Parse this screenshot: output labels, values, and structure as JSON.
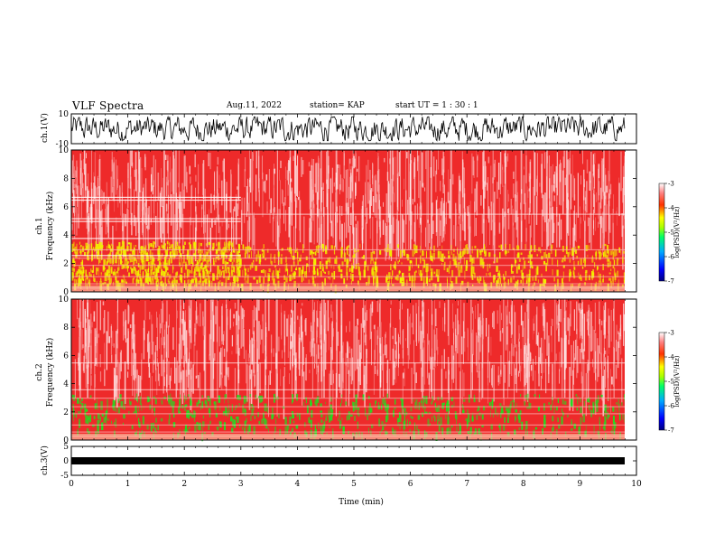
{
  "header": {
    "title": "VLF Spectra",
    "date": "Aug.11, 2022",
    "station": "station= KAP",
    "start": "start  UT =   1 : 30 : 1"
  },
  "colors": {
    "spec_background": "#ee2a2a",
    "spec_white_noise": "#ffe0e0",
    "spec_yellow": "#f2f000",
    "spec_green": "#22dd22",
    "waveform": "#000000"
  },
  "chart_data": [
    {
      "type": "line",
      "panel": "ch1-waveform",
      "ylabel": "ch.1(V)",
      "ylim": [
        -10,
        10
      ],
      "yticks": [
        "10",
        "-10"
      ],
      "xlim": [
        0,
        10
      ],
      "description_series": "noisy waveform spanning roughly -8 to 8 V"
    },
    {
      "type": "heatmap",
      "panel": "ch1-spectrogram",
      "ylabel": "ch.1",
      "ylabel2": "Frequency (kHz)",
      "ylim": [
        0,
        10
      ],
      "yticks": [
        "0",
        "2",
        "4",
        "6",
        "8",
        "10"
      ],
      "xlim": [
        0,
        10
      ],
      "features": [
        {
          "x_range": [
            0,
            3
          ],
          "band_kHz": [
            0.5,
            3.6
          ],
          "color": "yellow"
        },
        {
          "x_range": [
            3,
            9.8
          ],
          "band_kHz": [
            0.5,
            3.4
          ],
          "color": "yellow"
        }
      ],
      "colorbar": {
        "label": "log(PSD)(V²/Hz)",
        "ticks": [
          "-3",
          "-4",
          "-5",
          "-6",
          "-7"
        ],
        "range": [
          -7,
          -3
        ]
      }
    },
    {
      "type": "heatmap",
      "panel": "ch2-spectrogram",
      "ylabel": "ch.2",
      "ylabel2": "Frequency (kHz)",
      "ylim": [
        0,
        10
      ],
      "yticks": [
        "0",
        "2",
        "4",
        "6",
        "8",
        "10"
      ],
      "xlim": [
        0,
        10
      ],
      "features": [
        {
          "x_range": [
            0,
            9.8
          ],
          "band_kHz": [
            0.5,
            3.3
          ],
          "color": "green"
        }
      ],
      "colorbar": {
        "label": "log(PSD)(V²/Hz)",
        "ticks": [
          "-3",
          "-4",
          "-5",
          "-6",
          "-7"
        ],
        "range": [
          -7,
          -3
        ]
      }
    },
    {
      "type": "line",
      "panel": "ch3-waveform",
      "ylabel": "ch.3(V)",
      "ylim": [
        -5,
        5
      ],
      "yticks": [
        "5",
        "0",
        "-5"
      ],
      "xlim": [
        0,
        10
      ],
      "xlabel": "Time (min)",
      "xticks": [
        "0",
        "1",
        "2",
        "3",
        "4",
        "5",
        "6",
        "7",
        "8",
        "9",
        "10"
      ],
      "description_series": "thick flat trace around 0 V"
    }
  ]
}
